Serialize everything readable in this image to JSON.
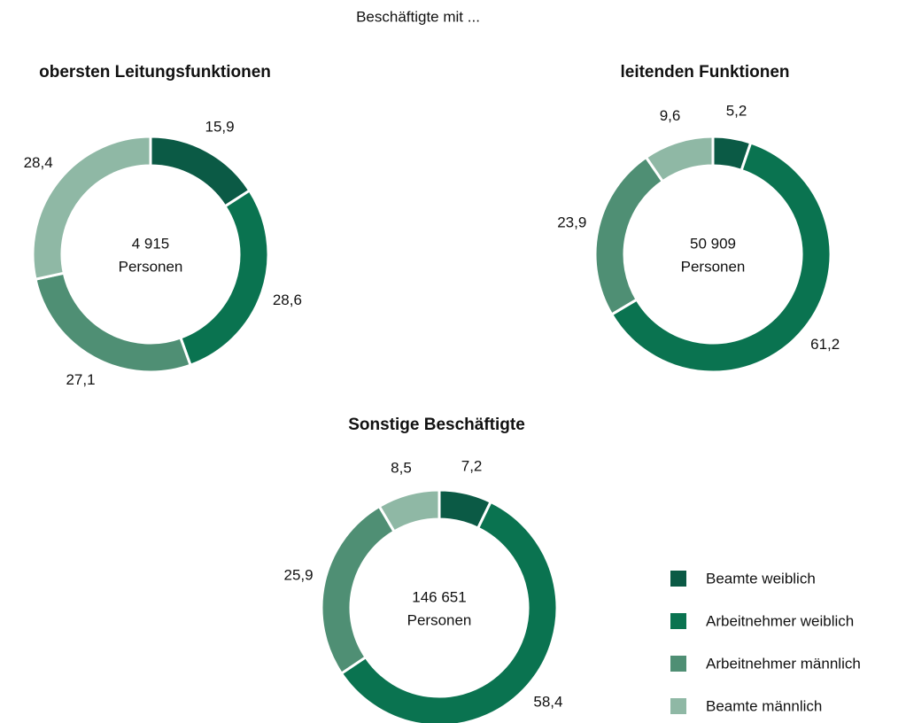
{
  "title": "Beschäftigte mit ...",
  "chart_data": [
    {
      "type": "pie",
      "title": "obersten Leitungsfunktionen",
      "center_lines": [
        "4 915",
        "Personen"
      ],
      "categories": [
        "Beamte weiblich",
        "Arbeitnehmer weiblich",
        "Arbeitnehmer männlich",
        "Beamte männlich"
      ],
      "colors": [
        "#0b5a45",
        "#0a7350",
        "#4f8f74",
        "#8fb8a5"
      ],
      "values": [
        15.9,
        28.6,
        27.1,
        28.4
      ],
      "value_labels": [
        "15,9",
        "28,6",
        "27,1",
        "28,4"
      ]
    },
    {
      "type": "pie",
      "title": "leitenden Funktionen",
      "center_lines": [
        "50 909",
        "Personen"
      ],
      "categories": [
        "Beamte weiblich",
        "Arbeitnehmer weiblich",
        "Arbeitnehmer männlich",
        "Beamte männlich"
      ],
      "colors": [
        "#0b5a45",
        "#0a7350",
        "#4f8f74",
        "#8fb8a5"
      ],
      "values": [
        5.2,
        61.2,
        23.9,
        9.6
      ],
      "value_labels": [
        "5,2",
        "61,2",
        "23,9",
        "9,6"
      ]
    },
    {
      "type": "pie",
      "title": "Sonstige Beschäftigte",
      "center_lines": [
        "146 651",
        "Personen"
      ],
      "categories": [
        "Beamte weiblich",
        "Arbeitnehmer weiblich",
        "Arbeitnehmer männlich",
        "Beamte männlich"
      ],
      "colors": [
        "#0b5a45",
        "#0a7350",
        "#4f8f74",
        "#8fb8a5"
      ],
      "values": [
        7.2,
        58.4,
        25.9,
        8.5
      ],
      "value_labels": [
        "7,2",
        "58,4",
        "25,9",
        "8,5"
      ]
    }
  ]
}
